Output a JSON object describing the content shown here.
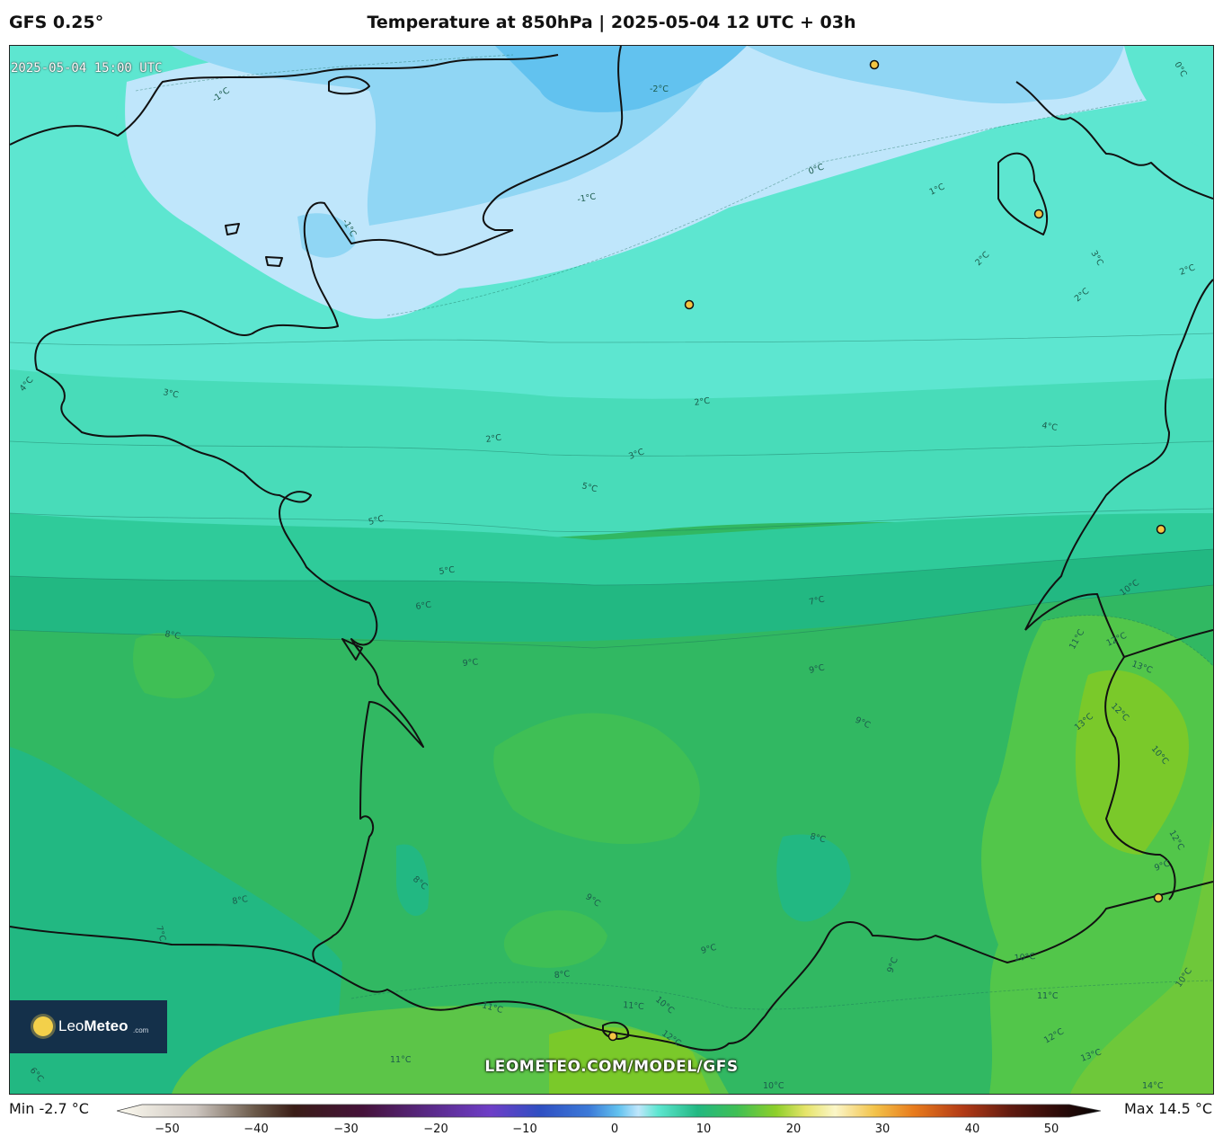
{
  "header": {
    "model": "GFS 0.25°",
    "title": "Temperature at 850hPa | 2025-05-04 12 UTC + 03h"
  },
  "map": {
    "valid_time": "2025-05-04 15:00 UTC",
    "watermark_url": "LEOMETEO.COM/MODEL/GFS",
    "logo": {
      "name_a": "Leo",
      "name_b": "Meteo",
      "domain": ".com"
    },
    "contour_labels": [
      "-1°C",
      "-2°C",
      "0°C",
      "-1°C",
      "-1°C",
      "1°C",
      "0°C",
      "2°C",
      "3°C",
      "2°C",
      "2°C",
      "2°C",
      "4°C",
      "3°C",
      "2°C",
      "3°C",
      "4°C",
      "5°C",
      "5°C",
      "5°C",
      "6°C",
      "7°C",
      "8°C",
      "9°C",
      "9°C",
      "9°C",
      "10°C",
      "11°C",
      "12°C",
      "13°C",
      "12°C",
      "13°C",
      "10°C",
      "12°C",
      "9°C",
      "8°C",
      "8°C",
      "8°C",
      "9°C",
      "9°C",
      "8°C",
      "9°C",
      "10°C",
      "11°C",
      "10°C",
      "12°C",
      "11°C",
      "11°C",
      "11°C",
      "12°C",
      "13°C",
      "14°C",
      "10°C",
      "6°C",
      "7°C",
      "10°C"
    ]
  },
  "legend": {
    "min_label": "Min -2.7 °C",
    "max_label": "Max 14.5 °C",
    "ticks": [
      "−50",
      "−40",
      "−30",
      "−20",
      "−10",
      "0",
      "10",
      "20",
      "30",
      "40",
      "50"
    ]
  },
  "colors": {
    "cold_light": "#bfe6fb",
    "cold": "#90d6f4",
    "cold_dark": "#62c2ef",
    "aqua": "#5de6d0",
    "green_a": "#3fcf9c",
    "green_b": "#22b882",
    "green_c": "#31b862",
    "green_d": "#3fbf55",
    "lime": "#7ac92a"
  }
}
